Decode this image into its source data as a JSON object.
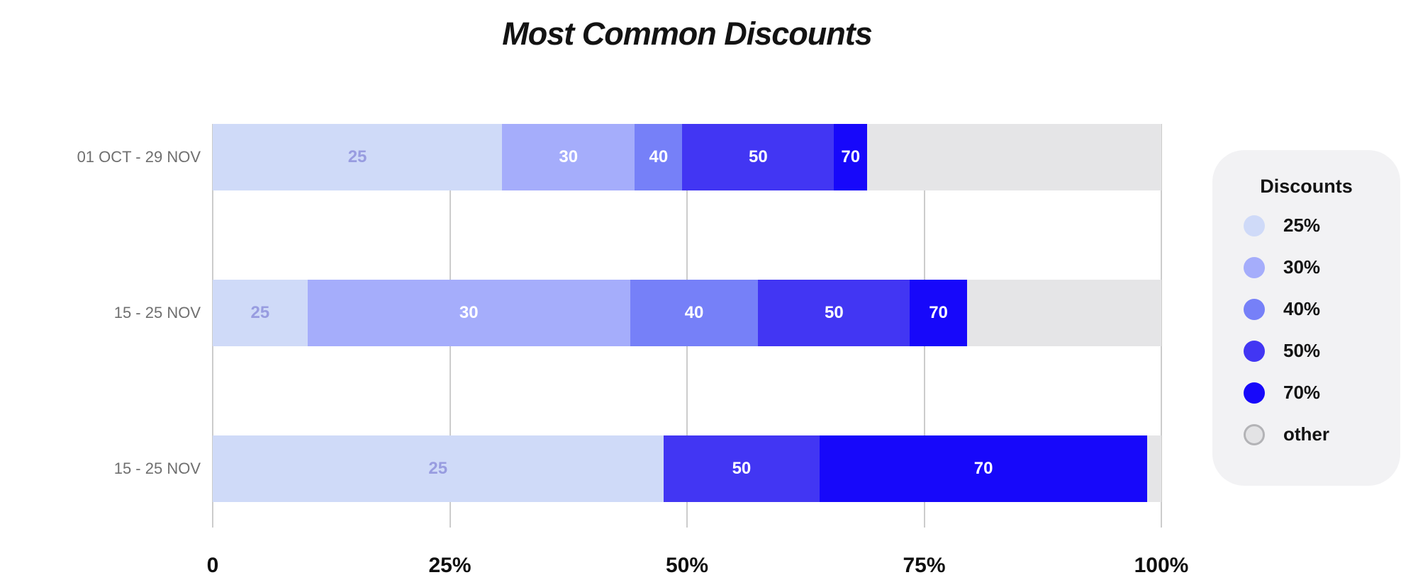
{
  "title": "Most Common Discounts",
  "colors": {
    "grid": "#cccccc",
    "axis_text": "#0f0f0f",
    "category_text": "#6f6f6f",
    "light_segment_label": "#989ce0",
    "white_segment_label": "#ffffff",
    "legend_card_bg": "#f2f2f4",
    "other_swatch_border": "#b3b3b6"
  },
  "legend": {
    "title": "Discounts",
    "items": [
      {
        "label": "25%",
        "color": "#cfdaf8",
        "border": ""
      },
      {
        "label": "30%",
        "color": "#a5adfb",
        "border": ""
      },
      {
        "label": "40%",
        "color": "#7680f8",
        "border": ""
      },
      {
        "label": "50%",
        "color": "#4236f3",
        "border": ""
      },
      {
        "label": "70%",
        "color": "#1708fa",
        "border": ""
      },
      {
        "label": "other",
        "color": "#e3e3e5",
        "border": "#b3b3b6"
      }
    ]
  },
  "chart_data": {
    "type": "bar",
    "stacked": true,
    "orientation": "horizontal",
    "title": "Most Common Discounts",
    "categories": [
      "01 OCT - 29 NOV",
      "15 - 25 NOV",
      "15 - 25 NOV"
    ],
    "series": [
      {
        "name": "25%",
        "bar_label": "25",
        "color": "#cfdaf8",
        "label_color": "#989ce0",
        "values": [
          30.5,
          10,
          47.5
        ]
      },
      {
        "name": "30%",
        "bar_label": "30",
        "color": "#a5adfb",
        "label_color": "#ffffff",
        "values": [
          14,
          34,
          0
        ]
      },
      {
        "name": "40%",
        "bar_label": "40",
        "color": "#7680f8",
        "label_color": "#ffffff",
        "values": [
          5,
          13.5,
          0
        ]
      },
      {
        "name": "50%",
        "bar_label": "50",
        "color": "#4236f3",
        "label_color": "#ffffff",
        "values": [
          16,
          16,
          16.5
        ]
      },
      {
        "name": "70%",
        "bar_label": "70",
        "color": "#1708fa",
        "label_color": "#ffffff",
        "values": [
          3.5,
          6,
          34.5
        ]
      },
      {
        "name": "other",
        "bar_label": "",
        "color": "#e5e5e7",
        "label_color": "",
        "values": [
          31,
          20.5,
          1.5
        ]
      }
    ],
    "x_axis": {
      "tick_labels": [
        "0",
        "25%",
        "50%",
        "75%",
        "100%"
      ],
      "tick_values": [
        0,
        25,
        50,
        75,
        100
      ],
      "range": [
        0,
        100
      ],
      "grid": true
    },
    "legend_position": "right",
    "legend_title": "Discounts"
  }
}
